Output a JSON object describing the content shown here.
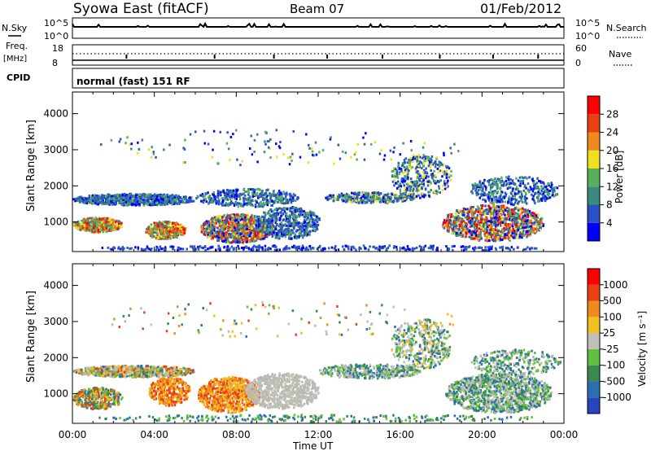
{
  "header": {
    "title": "Syowa East (fitACF)",
    "beam": "Beam 07",
    "date": "01/Feb/2012"
  },
  "summary": {
    "nsky_label": "N.Sky",
    "nsky_ticks": [
      "10^5",
      "10^0"
    ],
    "nsearch_label": "N.Search",
    "nsearch_ticks": [
      "10^5",
      "10^0"
    ],
    "freq_label": "Freq.",
    "freq_unit": "[MHz]",
    "freq_ticks": [
      "18",
      "8"
    ],
    "nave_label": "Nave",
    "nave_ticks": [
      "60",
      "0"
    ],
    "cpid_label": "CPID",
    "cpid_value": "normal (fast) 151 RF"
  },
  "chart_data": [
    {
      "type": "heatmap",
      "title": "",
      "xlabel": "Time UT",
      "ylabel": "Slant Range [km]",
      "x_ticks": [
        "00:00",
        "04:00",
        "08:00",
        "12:00",
        "16:00",
        "20:00",
        "00:00"
      ],
      "y_ticks": [
        1000,
        2000,
        3000,
        4000
      ],
      "ylim": [
        180,
        4600
      ],
      "colorbar_label": "Power [dB]",
      "colorbar_ticks": [
        4,
        8,
        12,
        16,
        20,
        24,
        28
      ],
      "colorbar_colors": [
        "#0000ff",
        "#2a50c8",
        "#3a8a80",
        "#57b05a",
        "#f0e020",
        "#f08a20",
        "#e84010",
        "#ff0000"
      ]
    },
    {
      "type": "heatmap",
      "title": "",
      "xlabel": "Time UT",
      "ylabel": "Slant Range [km]",
      "x_ticks": [
        "00:00",
        "04:00",
        "08:00",
        "12:00",
        "16:00",
        "20:00",
        "00:00"
      ],
      "y_ticks": [
        1000,
        2000,
        3000,
        4000
      ],
      "ylim": [
        180,
        4600
      ],
      "colorbar_label": "Velocity  [m s⁻¹]",
      "colorbar_ticks": [
        "1000",
        "500",
        "100",
        "25",
        "-25",
        "-100",
        "-500",
        "-1000"
      ],
      "colorbar_colors": [
        "#2a44c0",
        "#2a70b0",
        "#3a8a50",
        "#60c040",
        "#c0c0b8",
        "#f0c020",
        "#f08a20",
        "#e84010",
        "#ff0000"
      ]
    }
  ]
}
